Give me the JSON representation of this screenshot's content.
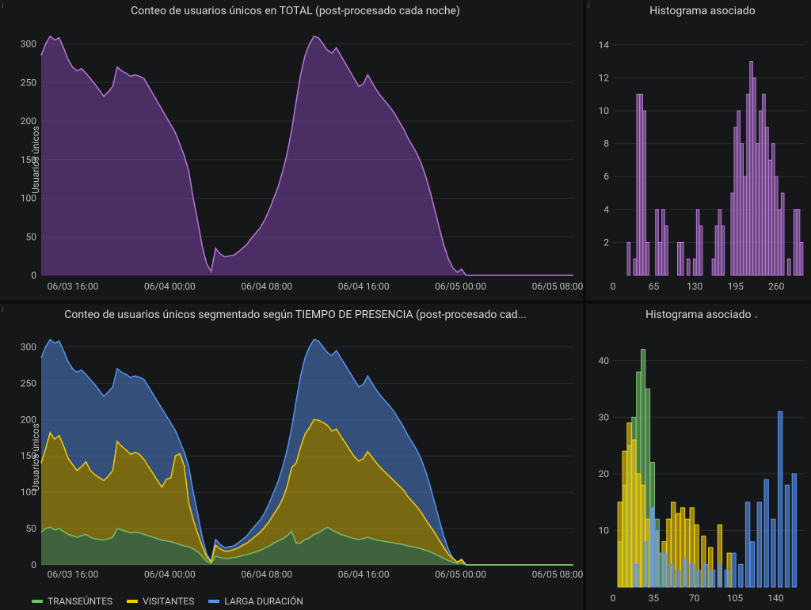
{
  "colors": {
    "panel_bg": "#161719",
    "page_bg": "#0b0c0e",
    "text": "#c7c7c7",
    "grid": "#2a2c31",
    "purple_line": "#b877d9",
    "purple_fill": "#8b4bbf",
    "green": "#73bf69",
    "yellow": "#f2cc0c",
    "blue": "#5794f2"
  },
  "panel1": {
    "title": "Conteo de usuarios únicos en TOTAL (post-procesado cada noche)",
    "ylabel": "Usuarios únicos",
    "type": "area",
    "ylim": [
      0,
      320
    ],
    "yticks": [
      0,
      50,
      100,
      150,
      200,
      250,
      300
    ],
    "xticks": [
      "06/03 16:00",
      "06/04 00:00",
      "06/04 08:00",
      "06/04 16:00",
      "06/05 00:00",
      "06/05 08:00"
    ],
    "series": {
      "color_line": "#b877d9",
      "color_fill": "#8b4bbf",
      "fill_opacity": 0.45,
      "n_points": 120,
      "data": [
        285,
        300,
        310,
        305,
        308,
        295,
        280,
        270,
        265,
        268,
        262,
        255,
        248,
        240,
        232,
        238,
        245,
        270,
        265,
        262,
        258,
        260,
        258,
        255,
        245,
        235,
        225,
        215,
        205,
        195,
        185,
        170,
        155,
        135,
        100,
        70,
        38,
        15,
        5,
        35,
        28,
        24,
        25,
        26,
        30,
        35,
        40,
        48,
        55,
        62,
        72,
        85,
        100,
        115,
        135,
        158,
        188,
        225,
        260,
        285,
        300,
        310,
        308,
        300,
        292,
        288,
        295,
        285,
        275,
        265,
        255,
        245,
        248,
        260,
        250,
        240,
        232,
        225,
        218,
        210,
        200,
        190,
        178,
        168,
        158,
        145,
        128,
        108,
        85,
        62,
        40,
        22,
        10,
        4,
        8,
        0,
        0,
        0,
        0,
        0,
        0,
        0,
        0,
        0,
        0,
        0,
        0,
        0,
        0,
        0,
        0,
        0,
        0,
        0,
        0,
        0,
        0,
        0,
        0,
        0
      ]
    }
  },
  "panel2": {
    "title": "Histograma asociado",
    "type": "histogram",
    "ylim": [
      0,
      15
    ],
    "yticks": [
      2,
      4,
      6,
      8,
      10,
      12,
      14
    ],
    "xlim": [
      0,
      305
    ],
    "xticks": [
      0,
      65,
      130,
      195,
      260
    ],
    "bar_color": "#b877d9",
    "bar_fill_opacity": 0.5,
    "bar_border": "#b877d9",
    "bars": [
      {
        "x": 25,
        "y": 2
      },
      {
        "x": 35,
        "y": 1
      },
      {
        "x": 40,
        "y": 11
      },
      {
        "x": 45,
        "y": 11
      },
      {
        "x": 50,
        "y": 10
      },
      {
        "x": 55,
        "y": 2
      },
      {
        "x": 70,
        "y": 4
      },
      {
        "x": 75,
        "y": 2
      },
      {
        "x": 80,
        "y": 4
      },
      {
        "x": 85,
        "y": 3
      },
      {
        "x": 105,
        "y": 2
      },
      {
        "x": 110,
        "y": 2
      },
      {
        "x": 120,
        "y": 1
      },
      {
        "x": 130,
        "y": 1
      },
      {
        "x": 135,
        "y": 4
      },
      {
        "x": 140,
        "y": 3
      },
      {
        "x": 160,
        "y": 1
      },
      {
        "x": 165,
        "y": 3
      },
      {
        "x": 170,
        "y": 4
      },
      {
        "x": 175,
        "y": 3
      },
      {
        "x": 190,
        "y": 5
      },
      {
        "x": 195,
        "y": 9
      },
      {
        "x": 200,
        "y": 10
      },
      {
        "x": 205,
        "y": 8
      },
      {
        "x": 210,
        "y": 6
      },
      {
        "x": 215,
        "y": 11
      },
      {
        "x": 220,
        "y": 13
      },
      {
        "x": 225,
        "y": 12
      },
      {
        "x": 230,
        "y": 8
      },
      {
        "x": 235,
        "y": 10
      },
      {
        "x": 240,
        "y": 11
      },
      {
        "x": 245,
        "y": 9
      },
      {
        "x": 250,
        "y": 7
      },
      {
        "x": 255,
        "y": 8
      },
      {
        "x": 260,
        "y": 6
      },
      {
        "x": 265,
        "y": 4
      },
      {
        "x": 270,
        "y": 5
      },
      {
        "x": 280,
        "y": 1
      },
      {
        "x": 290,
        "y": 4
      },
      {
        "x": 295,
        "y": 4
      },
      {
        "x": 300,
        "y": 2
      }
    ]
  },
  "panel3": {
    "title": "Conteo de usuarios únicos segmentado según TIEMPO DE PRESENCIA (post-procesado cad...",
    "ylabel": "Usuarios únicos",
    "type": "stacked-area",
    "ylim": [
      0,
      320
    ],
    "yticks": [
      0,
      50,
      100,
      150,
      200,
      250,
      300
    ],
    "xticks": [
      "06/03 16:00",
      "06/04 00:00",
      "06/04 08:00",
      "06/04 16:00",
      "06/05 00:00",
      "06/05 08:00"
    ],
    "legend": [
      {
        "label": "TRANSEÚNTES",
        "color": "#73bf69"
      },
      {
        "label": "VISITANTES",
        "color": "#f2cc0c"
      },
      {
        "label": "LARGA DURACIÓN",
        "color": "#5794f2"
      }
    ],
    "series": {
      "n_points": 120,
      "green": [
        45,
        50,
        52,
        48,
        50,
        46,
        42,
        40,
        38,
        40,
        42,
        38,
        36,
        35,
        34,
        36,
        38,
        50,
        48,
        46,
        44,
        45,
        44,
        42,
        40,
        38,
        36,
        34,
        33,
        32,
        30,
        28,
        26,
        25,
        22,
        18,
        12,
        5,
        2,
        12,
        10,
        9,
        9,
        10,
        11,
        13,
        14,
        16,
        18,
        20,
        23,
        26,
        30,
        33,
        36,
        40,
        46,
        30,
        30,
        35,
        37,
        42,
        44,
        48,
        52,
        48,
        45,
        42,
        40,
        38,
        36,
        35,
        36,
        38,
        36,
        34,
        33,
        32,
        31,
        30,
        29,
        28,
        26,
        25,
        24,
        22,
        20,
        18,
        15,
        12,
        9,
        6,
        4,
        2,
        3,
        0,
        0,
        0,
        0,
        0,
        0,
        0,
        0,
        0,
        0,
        0,
        0,
        0,
        0,
        0,
        0,
        0,
        0,
        0,
        0,
        0,
        0,
        0,
        0,
        0
      ],
      "yellow": [
        95,
        110,
        130,
        125,
        128,
        118,
        105,
        98,
        92,
        95,
        100,
        92,
        88,
        85,
        82,
        86,
        92,
        120,
        115,
        112,
        108,
        110,
        108,
        103,
        95,
        88,
        80,
        73,
        85,
        88,
        120,
        125,
        110,
        60,
        40,
        25,
        14,
        6,
        2,
        15,
        12,
        10,
        10,
        11,
        12,
        14,
        16,
        19,
        22,
        25,
        29,
        34,
        40,
        46,
        55,
        68,
        88,
        110,
        132,
        145,
        152,
        158,
        155,
        148,
        140,
        136,
        142,
        135,
        128,
        120,
        113,
        108,
        110,
        118,
        112,
        106,
        100,
        95,
        90,
        85,
        80,
        75,
        68,
        62,
        56,
        50,
        42,
        35,
        29,
        22,
        15,
        9,
        5,
        2,
        4,
        0,
        0,
        0,
        0,
        0,
        0,
        0,
        0,
        0,
        0,
        0,
        0,
        0,
        0,
        0,
        0,
        0,
        0,
        0,
        0,
        0,
        0,
        0,
        0,
        0
      ],
      "blue": [
        145,
        140,
        128,
        132,
        130,
        131,
        133,
        132,
        135,
        133,
        120,
        125,
        124,
        120,
        116,
        116,
        115,
        100,
        102,
        104,
        106,
        105,
        106,
        110,
        110,
        109,
        109,
        108,
        87,
        75,
        35,
        17,
        19,
        50,
        38,
        27,
        12,
        4,
        1,
        8,
        6,
        5,
        6,
        5,
        7,
        8,
        10,
        13,
        15,
        17,
        20,
        25,
        30,
        36,
        44,
        50,
        54,
        85,
        98,
        105,
        111,
        110,
        109,
        104,
        100,
        104,
        108,
        108,
        107,
        107,
        106,
        102,
        102,
        104,
        102,
        100,
        99,
        98,
        97,
        95,
        91,
        87,
        84,
        81,
        78,
        73,
        66,
        55,
        41,
        28,
        16,
        7,
        1,
        0,
        1,
        0,
        0,
        0,
        0,
        0,
        0,
        0,
        0,
        0,
        0,
        0,
        0,
        0,
        0,
        0,
        0,
        0,
        0,
        0,
        0,
        0,
        0,
        0,
        0,
        0
      ]
    }
  },
  "panel4": {
    "title": "Histograma asociado",
    "has_chevron": true,
    "type": "grouped-histogram",
    "ylim": [
      0,
      45
    ],
    "yticks": [
      10,
      20,
      30,
      40
    ],
    "xlim": [
      0,
      165
    ],
    "xticks": [
      0,
      35,
      70,
      105,
      140
    ],
    "series": [
      {
        "color": "#73bf69",
        "opacity": 0.6,
        "bars": [
          {
            "x": 6,
            "y": 8
          },
          {
            "x": 10,
            "y": 18
          },
          {
            "x": 14,
            "y": 25
          },
          {
            "x": 18,
            "y": 30
          },
          {
            "x": 22,
            "y": 38
          },
          {
            "x": 26,
            "y": 42
          },
          {
            "x": 30,
            "y": 35
          },
          {
            "x": 34,
            "y": 22
          },
          {
            "x": 38,
            "y": 12
          },
          {
            "x": 42,
            "y": 6
          }
        ]
      },
      {
        "color": "#f2cc0c",
        "opacity": 0.6,
        "bars": [
          {
            "x": 6,
            "y": 15
          },
          {
            "x": 10,
            "y": 24
          },
          {
            "x": 14,
            "y": 29
          },
          {
            "x": 18,
            "y": 26
          },
          {
            "x": 22,
            "y": 20
          },
          {
            "x": 26,
            "y": 18
          },
          {
            "x": 30,
            "y": 12
          },
          {
            "x": 34,
            "y": 14
          },
          {
            "x": 38,
            "y": 10
          },
          {
            "x": 44,
            "y": 8
          },
          {
            "x": 48,
            "y": 12
          },
          {
            "x": 52,
            "y": 15
          },
          {
            "x": 56,
            "y": 13
          },
          {
            "x": 60,
            "y": 14
          },
          {
            "x": 64,
            "y": 12
          },
          {
            "x": 68,
            "y": 14
          },
          {
            "x": 72,
            "y": 11
          },
          {
            "x": 78,
            "y": 9
          },
          {
            "x": 84,
            "y": 7
          },
          {
            "x": 92,
            "y": 11
          },
          {
            "x": 100,
            "y": 6
          }
        ]
      },
      {
        "color": "#5794f2",
        "opacity": 0.6,
        "bars": [
          {
            "x": 20,
            "y": 4
          },
          {
            "x": 28,
            "y": 8
          },
          {
            "x": 34,
            "y": 14
          },
          {
            "x": 38,
            "y": 10
          },
          {
            "x": 44,
            "y": 6
          },
          {
            "x": 50,
            "y": 4
          },
          {
            "x": 56,
            "y": 3
          },
          {
            "x": 62,
            "y": 5
          },
          {
            "x": 68,
            "y": 4
          },
          {
            "x": 74,
            "y": 3
          },
          {
            "x": 80,
            "y": 4
          },
          {
            "x": 86,
            "y": 3
          },
          {
            "x": 92,
            "y": 4
          },
          {
            "x": 98,
            "y": 3
          },
          {
            "x": 104,
            "y": 6
          },
          {
            "x": 110,
            "y": 4
          },
          {
            "x": 116,
            "y": 15
          },
          {
            "x": 120,
            "y": 8
          },
          {
            "x": 126,
            "y": 15
          },
          {
            "x": 132,
            "y": 19
          },
          {
            "x": 138,
            "y": 12
          },
          {
            "x": 144,
            "y": 31
          },
          {
            "x": 150,
            "y": 18
          },
          {
            "x": 156,
            "y": 20
          }
        ]
      }
    ]
  }
}
